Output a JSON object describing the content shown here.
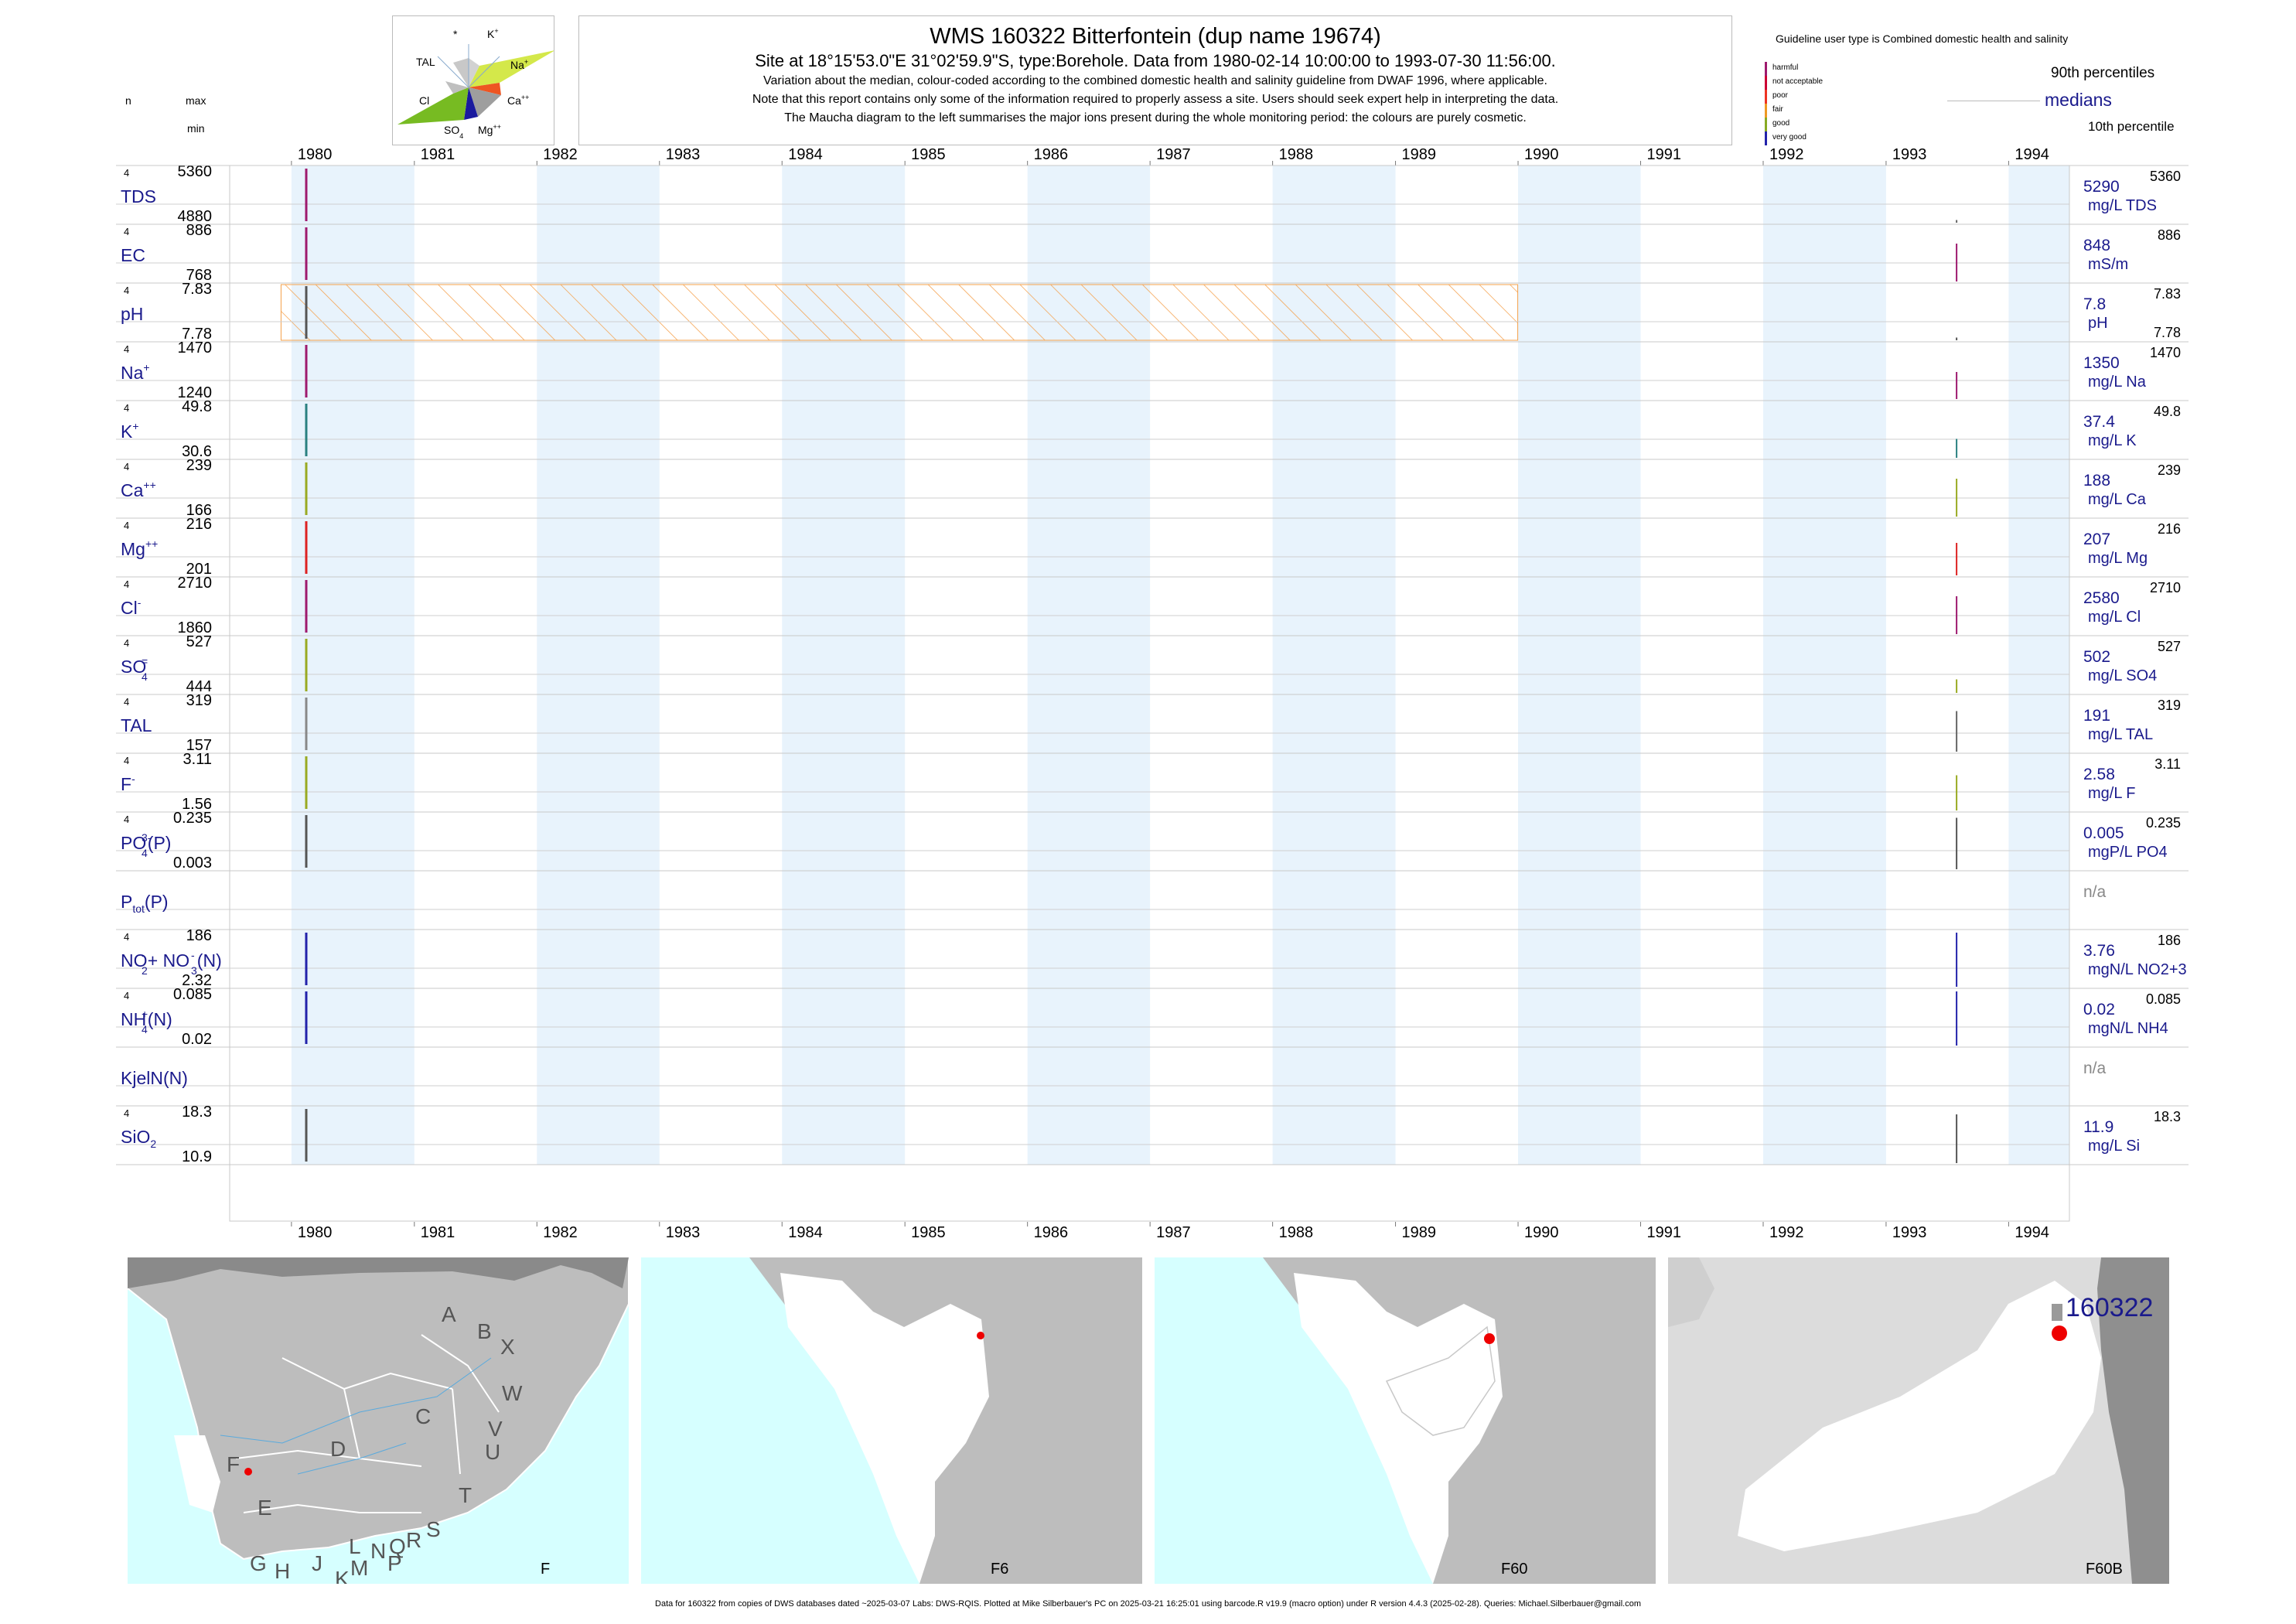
{
  "header": {
    "title": "WMS 160322  Bitterfontein (dup name 19674)",
    "subtitle": "Site at 18°15'53.0\"E 31°02'59.9\"S, type:Borehole.  Data from 1980-02-14 10:00:00 to 1993-07-30 11:56:00.",
    "note1": "Variation about the median,  colour-coded according to the combined domestic health and salinity guideline from DWAF 1996, where applicable.",
    "note2": "Note that this report contains only some of the information required to properly assess a site. Users should seek expert help in interpreting the data.",
    "note3": "The Maucha diagram to the left summarises the major ions present during the whole monitoring period: the colours are purely cosmetic."
  },
  "maucha": {
    "labels": {
      "star": "*",
      "k": "K",
      "k_sup": "+",
      "tal": "TAL",
      "na": "Na",
      "na_sup": "+",
      "cl": "Cl",
      "ca": "Ca",
      "ca_sup": "++",
      "so4": "SO",
      "so4_sub": "4",
      "so4_sup": "=",
      "mg": "Mg",
      "mg_sup": "++"
    },
    "colors": {
      "tal": "#b0b0b0",
      "na": "#d4e84a",
      "ca": "#ee5522",
      "cl": "#77bb22",
      "mg": "#9e9e9e",
      "so4": "#1a1a9e",
      "k": "#b5b5b5"
    }
  },
  "left_header": {
    "n": "n",
    "max": "max",
    "min": "min"
  },
  "legend": {
    "guideline_text": "Guideline user type is Combined domestic health and salinity",
    "categories": [
      {
        "label": "harmful",
        "color": "#9e1a6e"
      },
      {
        "label": "not acceptable",
        "color": "#cc0033"
      },
      {
        "label": "poor",
        "color": "#ee3322"
      },
      {
        "label": "fair",
        "color": "#ee9922"
      },
      {
        "label": "good",
        "color": "#88aa22"
      },
      {
        "label": "very good",
        "color": "#2222aa"
      }
    ],
    "p90": "90th percentiles",
    "medians": "medians",
    "p10": "10th percentile"
  },
  "chart_data": {
    "type": "line",
    "x_axis": {
      "years": [
        "1980",
        "1981",
        "1982",
        "1983",
        "1984",
        "1985",
        "1986",
        "1987",
        "1988",
        "1989",
        "1990",
        "1991",
        "1992",
        "1993",
        "1994"
      ],
      "range": [
        "1979-07-01",
        "1994-07-01"
      ]
    },
    "shaded_years": [
      "1980",
      "1982",
      "1984",
      "1986",
      "1988",
      "1990",
      "1992",
      "1994"
    ],
    "hatched_period": {
      "parameter": "pH",
      "from": "1979-12-01",
      "to": "1989-12-31",
      "color": "#f5a04a"
    },
    "series": [
      {
        "name": "TDS",
        "sup": "",
        "sub": "",
        "n": "4",
        "max": "5360",
        "min": "4880",
        "median": "5290",
        "unit": "mg/L TDS",
        "p90": "5360",
        "p10": "",
        "color": "#9e1a6e",
        "first_color": "#9e1a6e",
        "last_color": "#666666",
        "last_len": 0.05
      },
      {
        "name": "EC",
        "sup": "",
        "sub": "",
        "n": "4",
        "max": "886",
        "min": "768",
        "median": "848",
        "unit": "mS/m",
        "p90": "886",
        "p10": "",
        "color": "#9e1a6e",
        "first_color": "#9e1a6e",
        "last_color": "#9e1a6e",
        "last_len": 0.7
      },
      {
        "name": "pH",
        "sup": "",
        "sub": "",
        "n": "4",
        "max": "7.83",
        "min": "7.78",
        "median": "7.8",
        "unit": "pH",
        "p90": "7.83",
        "p10": "7.78",
        "color": "#555555",
        "first_color": "#555555",
        "last_color": "#555555",
        "last_len": 0.05
      },
      {
        "name": "Na",
        "sup": "+",
        "sub": "",
        "n": "4",
        "max": "1470",
        "min": "1240",
        "median": "1350",
        "unit": "mg/L Na",
        "p90": "1470",
        "p10": "",
        "color": "#9e1a6e",
        "first_color": "#9e1a6e",
        "last_color": "#9e1a6e",
        "last_len": 0.5
      },
      {
        "name": "K",
        "sup": "+",
        "sub": "",
        "n": "4",
        "max": "49.8",
        "min": "30.6",
        "median": "37.4",
        "unit": "mg/L K",
        "p90": "49.8",
        "p10": "",
        "color": "#2a8080",
        "first_color": "#2a8080",
        "last_color": "#2a8080",
        "last_len": 0.35
      },
      {
        "name": "Ca",
        "sup": "++",
        "sub": "",
        "n": "4",
        "max": "239",
        "min": "166",
        "median": "188",
        "unit": "mg/L Ca",
        "p90": "239",
        "p10": "",
        "color": "#99aa22",
        "first_color": "#99aa22",
        "last_color": "#99aa22",
        "last_len": 0.7
      },
      {
        "name": "Mg",
        "sup": "++",
        "sub": "",
        "n": "4",
        "max": "216",
        "min": "201",
        "median": "207",
        "unit": "mg/L Mg",
        "p90": "216",
        "p10": "",
        "color": "#dd2222",
        "first_color": "#dd2222",
        "last_color": "#dd2222",
        "last_len": 0.6
      },
      {
        "name": "Cl",
        "sup": "-",
        "sub": "",
        "n": "4",
        "max": "2710",
        "min": "1860",
        "median": "2580",
        "unit": "mg/L Cl",
        "p90": "2710",
        "p10": "",
        "color": "#9e1a6e",
        "first_color": "#9e1a6e",
        "last_color": "#9e1a6e",
        "last_len": 0.7
      },
      {
        "name": "SO",
        "sup": "=",
        "sub": "4",
        "n": "4",
        "max": "527",
        "min": "444",
        "median": "502",
        "unit": "mg/L SO4",
        "p90": "527",
        "p10": "",
        "color": "#99aa22",
        "first_color": "#99aa22",
        "last_color": "#99aa22",
        "last_len": 0.25
      },
      {
        "name": "TAL",
        "sup": "",
        "sub": "",
        "n": "4",
        "max": "319",
        "min": "157",
        "median": "191",
        "unit": "mg/L TAL",
        "p90": "319",
        "p10": "",
        "color": "#888888",
        "first_color": "#888888",
        "last_color": "#666666",
        "last_len": 0.75
      },
      {
        "name": "F",
        "sup": "-",
        "sub": "",
        "n": "4",
        "max": "3.11",
        "min": "1.56",
        "median": "2.58",
        "unit": "mg/L F",
        "p90": "3.11",
        "p10": "",
        "color": "#99aa22",
        "first_color": "#99aa22",
        "last_color": "#99aa22",
        "last_len": 0.65
      },
      {
        "name": "PO",
        "sup": "3-",
        "sub": "4",
        "suffix": "(P)",
        "n": "4",
        "max": "0.235",
        "min": "0.003",
        "median": "0.005",
        "unit": "mgP/L PO4",
        "p90": "0.235",
        "p10": "",
        "color": "#555555",
        "first_color": "#555555",
        "last_color": "#555555",
        "last_len": 0.95
      },
      {
        "name": "P",
        "sup": "",
        "sub": "tot",
        "suffix": "(P)",
        "n": "",
        "max": "",
        "min": "",
        "median": "n/a",
        "unit": "",
        "p90": "",
        "p10": "",
        "color": "#888888",
        "first_color": "",
        "last_color": "",
        "last_len": 0
      },
      {
        "name": "NO",
        "sup": "-",
        "sub": "2",
        "suffix": "+ NO",
        "suffix_sup": "-",
        "suffix_sub": "3",
        "suffix2": "(N)",
        "n": "4",
        "max": "186",
        "min": "2.32",
        "median": "3.76",
        "unit": "mgN/L NO2+3",
        "p90": "186",
        "p10": "",
        "color": "#2222aa",
        "first_color": "#2222aa",
        "last_color": "#2222aa",
        "last_len": 1.0
      },
      {
        "name": "NH",
        "sup": "+",
        "sub": "4",
        "suffix": "(N)",
        "n": "4",
        "max": "0.085",
        "min": "0.02",
        "median": "0.02",
        "unit": "mgN/L NH4",
        "p90": "0.085",
        "p10": "",
        "color": "#2222aa",
        "first_color": "#2222aa",
        "last_color": "#2222aa",
        "last_len": 1.0
      },
      {
        "name": "KjelN(N)",
        "sup": "",
        "sub": "",
        "n": "",
        "max": "",
        "min": "",
        "median": "n/a",
        "unit": "",
        "p90": "",
        "p10": "",
        "color": "#888888",
        "first_color": "",
        "last_color": "",
        "last_len": 0
      },
      {
        "name": "SiO",
        "sup": "",
        "sub": "2",
        "n": "4",
        "max": "18.3",
        "min": "10.9",
        "median": "11.9",
        "unit": "mg/L Si",
        "p90": "18.3",
        "p10": "",
        "color": "#555555",
        "first_color": "#555555",
        "last_color": "#555555",
        "last_len": 0.9
      }
    ]
  },
  "maps": [
    {
      "caption": "F",
      "letters": [
        "A",
        "B",
        "X",
        "W",
        "C",
        "V",
        "U",
        "D",
        "T",
        "F",
        "E",
        "S",
        "R",
        "L",
        "N",
        "Q",
        "P",
        "M",
        "K",
        "J",
        "G",
        "H"
      ]
    },
    {
      "caption": "F6"
    },
    {
      "caption": "F60"
    },
    {
      "caption": "F60B",
      "site_label": "160322"
    }
  ],
  "footer": "Data for 160322 from copies of DWS databases dated ~2025-03-07 Labs: DWS-RQIS. Plotted at Mike Silberbauer's PC on 2025-03-21 16:25:01 using barcode.R v19.9 (macro option) under R version 4.4.3 (2025-02-28). Queries: Michael.Silberbauer@gmail.com"
}
